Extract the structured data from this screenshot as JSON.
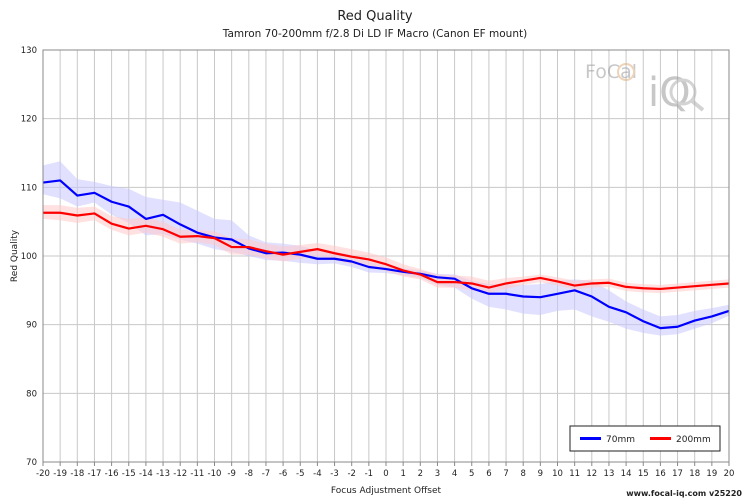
{
  "chart_data": {
    "type": "line",
    "title": "Red Quality",
    "subtitle": "Tamron 70-200mm f/2.8 Di LD IF Macro (Canon EF mount)",
    "xlabel": "Focus Adjustment Offset",
    "ylabel": "Red Quality",
    "xlim": [
      -20,
      20
    ],
    "ylim": [
      70,
      130
    ],
    "x": [
      -20,
      -19,
      -18,
      -17,
      -16,
      -15,
      -14,
      -13,
      -12,
      -11,
      -10,
      -9,
      -8,
      -7,
      -6,
      -5,
      -4,
      -3,
      -2,
      -1,
      0,
      1,
      2,
      3,
      4,
      5,
      6,
      7,
      8,
      9,
      10,
      11,
      12,
      13,
      14,
      15,
      16,
      17,
      18,
      19,
      20
    ],
    "x_ticks": [
      "-20",
      "-19",
      "-18",
      "-17",
      "-16",
      "-15",
      "-14",
      "-13",
      "-12",
      "-11",
      "-10",
      "-9",
      "-8",
      "-7",
      "-6",
      "-5",
      "-4",
      "-3",
      "-2",
      "-1",
      "0",
      "1",
      "2",
      "3",
      "4",
      "5",
      "6",
      "7",
      "8",
      "9",
      "10",
      "11",
      "12",
      "13",
      "14",
      "15",
      "16",
      "17",
      "18",
      "19",
      "20"
    ],
    "y_ticks": [
      "70",
      "80",
      "90",
      "100",
      "110",
      "120",
      "130"
    ],
    "grid": true,
    "legend_position": "bottom-right",
    "series": [
      {
        "name": "70mm",
        "color": "#0000ff",
        "band_color": "#c8c8ff",
        "values": [
          110.7,
          111.0,
          108.8,
          109.2,
          107.9,
          107.2,
          105.4,
          106.0,
          104.6,
          103.4,
          102.7,
          102.4,
          101.1,
          100.4,
          100.5,
          100.2,
          99.6,
          99.6,
          99.2,
          98.4,
          98.1,
          97.7,
          97.4,
          96.9,
          96.7,
          95.3,
          94.5,
          94.5,
          94.1,
          94.0,
          94.5,
          95.0,
          94.1,
          92.6,
          91.8,
          90.5,
          89.5,
          89.7,
          90.6,
          91.2,
          92.0
        ],
        "upper": [
          113.2,
          113.8,
          111.2,
          110.8,
          110.2,
          109.8,
          108.6,
          108.2,
          107.8,
          106.6,
          105.4,
          105.2,
          103.0,
          102.0,
          101.8,
          101.5,
          100.8,
          100.6,
          100.2,
          99.2,
          98.6,
          98.2,
          97.9,
          97.4,
          97.3,
          96.4,
          95.9,
          95.9,
          95.8,
          95.9,
          96.4,
          96.6,
          96.4,
          95.0,
          93.4,
          92.2,
          91.2,
          91.4,
          92.0,
          92.4,
          92.9
        ],
        "lower": [
          109.0,
          108.4,
          107.2,
          107.8,
          106.0,
          104.8,
          103.0,
          103.2,
          102.4,
          101.8,
          101.0,
          100.6,
          100.0,
          99.4,
          99.3,
          99.0,
          98.8,
          98.9,
          98.4,
          97.6,
          97.5,
          97.2,
          96.8,
          95.8,
          95.4,
          93.8,
          92.6,
          92.2,
          91.6,
          91.4,
          92.0,
          92.2,
          91.2,
          90.4,
          89.4,
          88.8,
          88.4,
          88.6,
          89.4,
          90.2,
          91.3
        ]
      },
      {
        "name": "200mm",
        "color": "#ff0000",
        "band_color": "#ffc8c8",
        "values": [
          106.3,
          106.3,
          105.9,
          106.2,
          104.7,
          104.0,
          104.4,
          103.9,
          102.8,
          102.9,
          102.6,
          101.3,
          101.3,
          100.7,
          100.2,
          100.6,
          101.0,
          100.4,
          99.9,
          99.5,
          98.8,
          97.9,
          97.3,
          96.2,
          96.2,
          96.0,
          95.4,
          96.0,
          96.4,
          96.8,
          96.3,
          95.7,
          96.0,
          96.1,
          95.5,
          95.3,
          95.2,
          95.4,
          95.6,
          95.8,
          96.0
        ],
        "upper": [
          107.4,
          107.4,
          107.0,
          107.2,
          105.8,
          105.4,
          105.6,
          105.0,
          103.8,
          103.8,
          103.6,
          102.6,
          102.4,
          101.8,
          101.4,
          101.6,
          101.9,
          101.5,
          101.0,
          100.5,
          99.8,
          98.8,
          98.1,
          97.3,
          97.2,
          97.0,
          96.4,
          96.8,
          97.0,
          97.3,
          96.9,
          96.4,
          96.6,
          96.7,
          96.1,
          95.9,
          95.8,
          96.0,
          96.2,
          96.4,
          96.6
        ],
        "lower": [
          105.4,
          105.2,
          104.8,
          105.2,
          103.8,
          103.0,
          103.4,
          102.8,
          101.8,
          102.0,
          101.6,
          100.2,
          100.2,
          99.6,
          99.2,
          99.6,
          100.0,
          99.4,
          98.8,
          98.5,
          97.8,
          97.0,
          96.6,
          95.4,
          95.4,
          95.0,
          94.6,
          95.2,
          95.8,
          96.2,
          95.7,
          95.1,
          95.4,
          95.5,
          94.9,
          94.7,
          94.6,
          94.8,
          95.0,
          95.2,
          95.4
        ]
      }
    ]
  },
  "logo": {
    "top_text": "FoCal",
    "bottom_text": "iQ"
  },
  "footer": "www.focal-iq.com  v25220"
}
